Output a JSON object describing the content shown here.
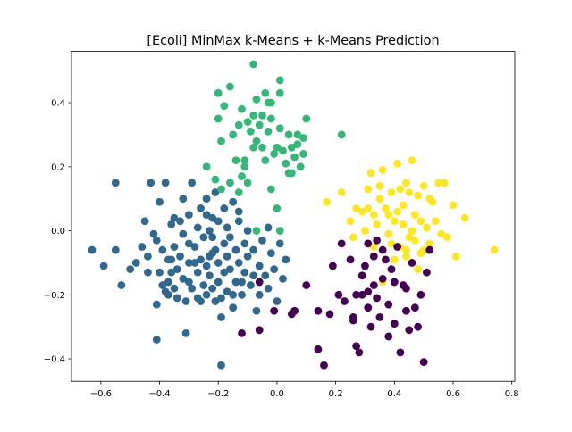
{
  "chart_data": {
    "type": "scatter",
    "title": "[Ecoli] MinMax k-Means + k-Means Prediction",
    "xlabel": "",
    "ylabel": "",
    "xlim": [
      -0.7,
      0.81
    ],
    "ylim": [
      -0.47,
      0.56
    ],
    "xticks": [
      -0.6,
      -0.4,
      -0.2,
      0.0,
      0.2,
      0.4,
      0.6,
      0.8
    ],
    "xtick_labels": [
      "−0.6",
      "−0.4",
      "−0.2",
      "0.0",
      "0.2",
      "0.4",
      "0.6",
      "0.8"
    ],
    "yticks": [
      -0.4,
      -0.2,
      0.0,
      0.2,
      0.4
    ],
    "ytick_labels": [
      "−0.4",
      "−0.2",
      "0.0",
      "0.2",
      "0.4"
    ],
    "grid": false,
    "series": [
      {
        "color": "#31688e",
        "points": [
          [
            -0.63,
            -0.06
          ],
          [
            -0.59,
            -0.11
          ],
          [
            -0.55,
            0.15
          ],
          [
            -0.55,
            -0.06
          ],
          [
            -0.53,
            -0.17
          ],
          [
            -0.5,
            -0.12
          ],
          [
            -0.48,
            -0.1
          ],
          [
            -0.46,
            -0.05
          ],
          [
            -0.45,
            0.03
          ],
          [
            -0.44,
            -0.08
          ],
          [
            -0.43,
            0.15
          ],
          [
            -0.42,
            -0.01
          ],
          [
            -0.41,
            -0.03
          ],
          [
            -0.41,
            -0.23
          ],
          [
            -0.41,
            -0.34
          ],
          [
            -0.4,
            0.09
          ],
          [
            -0.4,
            -0.13
          ],
          [
            -0.39,
            -0.06
          ],
          [
            -0.38,
            0.15
          ],
          [
            -0.38,
            -0.19
          ],
          [
            -0.37,
            -0.16
          ],
          [
            -0.37,
            -0.2
          ],
          [
            -0.36,
            0.02
          ],
          [
            -0.36,
            -0.09
          ],
          [
            -0.36,
            -0.13
          ],
          [
            -0.35,
            0.04
          ],
          [
            -0.35,
            -0.05
          ],
          [
            -0.34,
            -0.12
          ],
          [
            -0.34,
            -0.21
          ],
          [
            -0.33,
            0.03
          ],
          [
            -0.33,
            -0.08
          ],
          [
            -0.32,
            0.1
          ],
          [
            -0.32,
            -0.01
          ],
          [
            -0.32,
            -0.15
          ],
          [
            -0.31,
            -0.22
          ],
          [
            -0.3,
            0.05
          ],
          [
            -0.3,
            -0.04
          ],
          [
            -0.3,
            -0.1
          ],
          [
            -0.29,
            -0.18
          ],
          [
            -0.29,
            0.15
          ],
          [
            -0.28,
            -0.05
          ],
          [
            -0.27,
            0.01
          ],
          [
            -0.27,
            -0.13
          ],
          [
            -0.27,
            -0.21
          ],
          [
            -0.26,
            0.07
          ],
          [
            -0.26,
            -0.09
          ],
          [
            -0.25,
            -0.02
          ],
          [
            -0.25,
            -0.17
          ],
          [
            -0.24,
            0.05
          ],
          [
            -0.24,
            -0.11
          ],
          [
            -0.24,
            -0.2
          ],
          [
            -0.23,
            0.0
          ],
          [
            -0.23,
            -0.08
          ],
          [
            -0.23,
            -0.14
          ],
          [
            -0.22,
            0.04
          ],
          [
            -0.22,
            -0.02
          ],
          [
            -0.22,
            -0.18
          ],
          [
            -0.21,
            0.12
          ],
          [
            -0.21,
            -0.06
          ],
          [
            -0.21,
            -0.22
          ],
          [
            -0.2,
            0.03
          ],
          [
            -0.2,
            -0.1
          ],
          [
            -0.2,
            -0.16
          ],
          [
            -0.19,
            -0.27
          ],
          [
            -0.19,
            -0.42
          ],
          [
            -0.18,
            0.07
          ],
          [
            -0.18,
            -0.04
          ],
          [
            -0.18,
            -0.13
          ],
          [
            -0.17,
            0.01
          ],
          [
            -0.17,
            -0.08
          ],
          [
            -0.17,
            -0.19
          ],
          [
            -0.16,
            -0.02
          ],
          [
            -0.16,
            -0.12
          ],
          [
            -0.15,
            0.09
          ],
          [
            -0.15,
            -0.24
          ],
          [
            -0.14,
            -0.06
          ],
          [
            -0.14,
            -0.16
          ],
          [
            -0.13,
            0.03
          ],
          [
            -0.13,
            -0.1
          ],
          [
            -0.12,
            -0.2
          ],
          [
            -0.11,
            -0.04
          ],
          [
            -0.11,
            -0.13
          ],
          [
            -0.1,
            0.0
          ],
          [
            -0.1,
            -0.08
          ],
          [
            -0.09,
            -0.17
          ],
          [
            -0.08,
            -0.06
          ],
          [
            -0.07,
            -0.25
          ],
          [
            -0.06,
            -0.11
          ],
          [
            -0.05,
            -0.03
          ],
          [
            -0.04,
            -0.14
          ],
          [
            -0.03,
            0.01
          ],
          [
            -0.03,
            -0.18
          ],
          [
            -0.02,
            -0.07
          ],
          [
            -0.01,
            -0.12
          ],
          [
            0.0,
            -0.22
          ],
          [
            0.01,
            -0.04
          ],
          [
            0.02,
            -0.15
          ],
          [
            0.03,
            -0.09
          ],
          [
            -0.39,
            -0.17
          ],
          [
            -0.44,
            -0.13
          ],
          [
            -0.35,
            -0.18
          ],
          [
            -0.31,
            -0.32
          ],
          [
            -0.26,
            -0.22
          ],
          [
            -0.12,
            -0.16
          ],
          [
            -0.06,
            -0.2
          ],
          [
            -0.08,
            -0.14
          ],
          [
            -0.15,
            -0.2
          ],
          [
            -0.3,
            -0.16
          ],
          [
            -0.19,
            -0.21
          ],
          [
            -0.37,
            -0.09
          ],
          [
            -0.28,
            -0.1
          ],
          [
            -0.22,
            -0.07
          ],
          [
            -0.24,
            0.1
          ],
          [
            -0.13,
            0.06
          ]
        ]
      },
      {
        "color": "#35b779",
        "points": [
          [
            -0.2,
            0.43
          ],
          [
            -0.16,
            0.45
          ],
          [
            -0.08,
            0.52
          ],
          [
            -0.07,
            0.41
          ],
          [
            -0.05,
            0.36
          ],
          [
            -0.04,
            0.43
          ],
          [
            -0.02,
            0.4
          ],
          [
            0.01,
            0.47
          ],
          [
            0.01,
            0.43
          ],
          [
            -0.2,
            0.35
          ],
          [
            -0.18,
            0.39
          ],
          [
            -0.15,
            0.3
          ],
          [
            -0.13,
            0.33
          ],
          [
            -0.12,
            0.38
          ],
          [
            -0.1,
            0.34
          ],
          [
            -0.09,
            0.31
          ],
          [
            -0.08,
            0.36
          ],
          [
            -0.07,
            0.28
          ],
          [
            -0.06,
            0.33
          ],
          [
            -0.05,
            0.26
          ],
          [
            -0.03,
            0.31
          ],
          [
            -0.02,
            0.35
          ],
          [
            0.0,
            0.26
          ],
          [
            0.01,
            0.32
          ],
          [
            0.02,
            0.25
          ],
          [
            0.03,
            0.21
          ],
          [
            0.04,
            0.3
          ],
          [
            0.05,
            0.18
          ],
          [
            0.06,
            0.23
          ],
          [
            0.07,
            0.27
          ],
          [
            0.08,
            0.2
          ],
          [
            0.09,
            0.29
          ],
          [
            0.1,
            0.35
          ],
          [
            0.07,
            0.3
          ],
          [
            0.05,
            0.26
          ],
          [
            -0.01,
            0.24
          ],
          [
            -0.04,
            0.22
          ],
          [
            -0.08,
            0.26
          ],
          [
            -0.11,
            0.2
          ],
          [
            -0.12,
            0.17
          ],
          [
            -0.14,
            0.22
          ],
          [
            -0.16,
            0.15
          ],
          [
            -0.19,
            0.28
          ],
          [
            -0.19,
            0.13
          ],
          [
            -0.21,
            0.16
          ],
          [
            -0.13,
            0.12
          ],
          [
            -0.1,
            0.15
          ],
          [
            -0.02,
            0.13
          ],
          [
            0.0,
            0.07
          ],
          [
            0.01,
            0.0
          ],
          [
            0.04,
            0.18
          ],
          [
            -0.24,
            0.2
          ],
          [
            -0.07,
            0.0
          ],
          [
            0.22,
            0.3
          ],
          [
            -0.11,
            0.22
          ],
          [
            -0.03,
            0.4
          ],
          [
            0.09,
            0.24
          ]
        ]
      },
      {
        "color": "#fde725",
        "points": [
          [
            0.17,
            0.09
          ],
          [
            0.22,
            0.12
          ],
          [
            0.25,
            0.03
          ],
          [
            0.27,
            0.07
          ],
          [
            0.29,
            0.06
          ],
          [
            0.31,
            0.13
          ],
          [
            0.32,
            0.18
          ],
          [
            0.33,
            0.05
          ],
          [
            0.34,
            0.02
          ],
          [
            0.35,
            0.1
          ],
          [
            0.36,
            0.19
          ],
          [
            0.37,
            0.07
          ],
          [
            0.38,
            -0.01
          ],
          [
            0.39,
            0.12
          ],
          [
            0.4,
            0.03
          ],
          [
            0.41,
            0.21
          ],
          [
            0.42,
            -0.05
          ],
          [
            0.43,
            0.08
          ],
          [
            0.44,
            0.15
          ],
          [
            0.45,
            -0.02
          ],
          [
            0.46,
            0.22
          ],
          [
            0.47,
            0.05
          ],
          [
            0.48,
            0.11
          ],
          [
            0.49,
            -0.07
          ],
          [
            0.5,
            0.14
          ],
          [
            0.51,
            0.01
          ],
          [
            0.52,
            -0.04
          ],
          [
            0.53,
            0.09
          ],
          [
            0.55,
            0.15
          ],
          [
            0.57,
            0.15
          ],
          [
            0.58,
            -0.02
          ],
          [
            0.6,
            0.08
          ],
          [
            0.61,
            -0.08
          ],
          [
            0.64,
            0.04
          ],
          [
            0.74,
            -0.06
          ],
          [
            0.3,
            0.0
          ],
          [
            0.33,
            -0.05
          ],
          [
            0.36,
            -0.16
          ],
          [
            0.39,
            -0.04
          ],
          [
            0.41,
            0.06
          ],
          [
            0.44,
            -0.08
          ],
          [
            0.46,
            0.0
          ],
          [
            0.48,
            -0.12
          ],
          [
            0.5,
            -0.06
          ],
          [
            0.52,
            0.1
          ],
          [
            0.54,
            0.03
          ],
          [
            0.56,
            -0.01
          ],
          [
            0.43,
            0.02
          ],
          [
            0.4,
            -0.09
          ],
          [
            0.45,
            0.12
          ],
          [
            0.38,
            0.05
          ],
          [
            0.35,
            0.14
          ],
          [
            0.42,
            0.13
          ],
          [
            0.47,
            -0.03
          ],
          [
            0.31,
            0.07
          ],
          [
            0.26,
            -0.02
          ],
          [
            0.49,
            0.03
          ],
          [
            0.44,
            -0.06
          ]
        ]
      },
      {
        "color": "#440154",
        "points": [
          [
            -0.06,
            -0.16
          ],
          [
            -0.06,
            -0.31
          ],
          [
            -0.12,
            -0.32
          ],
          [
            -0.01,
            -0.25
          ],
          [
            0.05,
            -0.26
          ],
          [
            0.06,
            -0.25
          ],
          [
            0.1,
            -0.17
          ],
          [
            0.14,
            -0.25
          ],
          [
            0.14,
            -0.37
          ],
          [
            0.16,
            -0.42
          ],
          [
            0.18,
            -0.26
          ],
          [
            0.19,
            -0.11
          ],
          [
            0.21,
            -0.2
          ],
          [
            0.22,
            -0.04
          ],
          [
            0.23,
            -0.22
          ],
          [
            0.25,
            -0.09
          ],
          [
            0.26,
            -0.27
          ],
          [
            0.27,
            -0.36
          ],
          [
            0.28,
            -0.38
          ],
          [
            0.29,
            -0.2
          ],
          [
            0.3,
            -0.11
          ],
          [
            0.31,
            -0.24
          ],
          [
            0.31,
            -0.04
          ],
          [
            0.32,
            -0.3
          ],
          [
            0.33,
            -0.17
          ],
          [
            0.33,
            -0.08
          ],
          [
            0.34,
            -0.21
          ],
          [
            0.35,
            -0.27
          ],
          [
            0.36,
            -0.15
          ],
          [
            0.37,
            -0.09
          ],
          [
            0.38,
            -0.23
          ],
          [
            0.38,
            -0.33
          ],
          [
            0.39,
            -0.12
          ],
          [
            0.4,
            -0.29
          ],
          [
            0.41,
            -0.05
          ],
          [
            0.42,
            -0.38
          ],
          [
            0.43,
            -0.17
          ],
          [
            0.44,
            -0.25
          ],
          [
            0.45,
            -0.31
          ],
          [
            0.46,
            -0.1
          ],
          [
            0.47,
            -0.24
          ],
          [
            0.48,
            -0.3
          ],
          [
            0.49,
            -0.2
          ],
          [
            0.5,
            -0.41
          ],
          [
            0.51,
            -0.13
          ],
          [
            0.52,
            -0.06
          ],
          [
            0.29,
            -0.14
          ],
          [
            0.34,
            -0.03
          ],
          [
            0.27,
            -0.2
          ],
          [
            0.4,
            -0.16
          ],
          [
            0.44,
            -0.18
          ],
          [
            0.36,
            -0.06
          ],
          [
            0.31,
            -0.19
          ],
          [
            0.26,
            -0.28
          ]
        ]
      }
    ]
  }
}
